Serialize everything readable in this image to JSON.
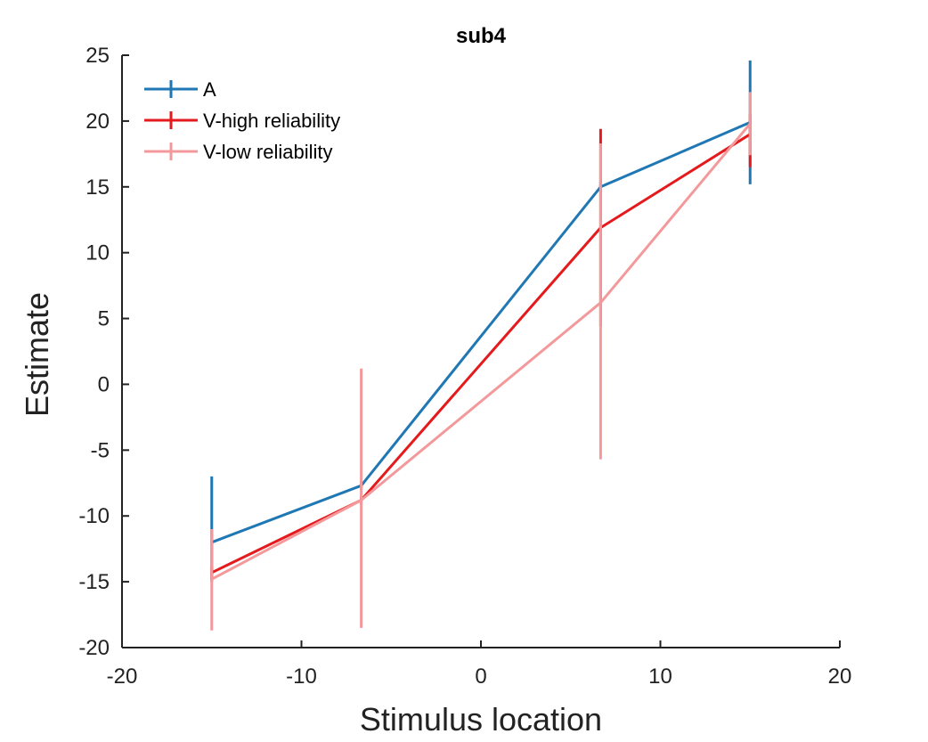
{
  "chart_data": {
    "type": "line",
    "title": "sub4",
    "xlabel": "Stimulus location",
    "ylabel": "Estimate",
    "xlim": [
      -20,
      20
    ],
    "ylim": [
      -20,
      25
    ],
    "xticks": [
      "-20",
      "-10",
      "0",
      "10",
      "20"
    ],
    "yticks": [
      "-20",
      "-15",
      "-10",
      "-5",
      "0",
      "5",
      "10",
      "15",
      "20",
      "25"
    ],
    "x": [
      -15,
      -6.67,
      6.67,
      15
    ],
    "grid": false,
    "legend_position": "top-left",
    "series": [
      {
        "name": "A",
        "color": "#1f77b4",
        "values": [
          -12.0,
          -7.7,
          15.0,
          19.9
        ],
        "error": [
          [
            -15.0,
            -7.0
          ],
          [
            -8.0,
            -7.4
          ],
          [
            14.6,
            15.4
          ],
          [
            15.2,
            24.6
          ]
        ]
      },
      {
        "name": "V-high reliability",
        "color": "#e41a1c",
        "values": [
          -14.3,
          -8.8,
          11.9,
          19.0
        ],
        "error": [
          [
            -14.8,
            -13.8
          ],
          [
            -9.1,
            -8.5
          ],
          [
            4.4,
            19.4
          ],
          [
            16.5,
            20.5
          ]
        ]
      },
      {
        "name": "V-low reliability",
        "color": "#f4999b",
        "values": [
          -14.8,
          -8.8,
          6.2,
          19.8
        ],
        "error": [
          [
            -18.7,
            -11.0
          ],
          [
            -18.5,
            1.2
          ],
          [
            -5.7,
            18.3
          ],
          [
            17.4,
            22.2
          ]
        ]
      }
    ]
  }
}
